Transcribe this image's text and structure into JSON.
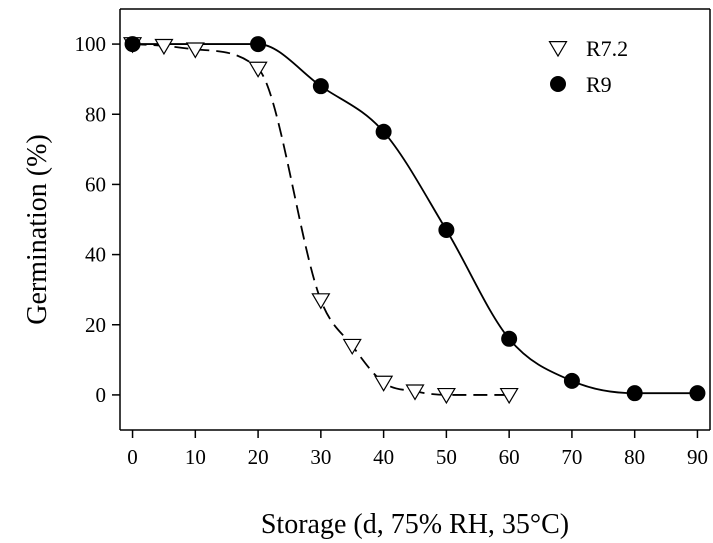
{
  "chart_data": {
    "type": "scatter",
    "xlabel": "Storage (d, 75% RH, 35°C)",
    "ylabel": "Germination (%)",
    "xlim": [
      -2,
      92
    ],
    "ylim": [
      -10,
      110
    ],
    "xticks": [
      0,
      10,
      20,
      30,
      40,
      50,
      60,
      70,
      80,
      90
    ],
    "yticks": [
      0,
      20,
      40,
      60,
      80,
      100
    ],
    "grid": false,
    "legend_position": "top-right",
    "series": [
      {
        "name": "R7.2",
        "marker": "triangle-down-open",
        "fit_line": "dashed",
        "fit_x_max": 60,
        "color": "#000000",
        "points": [
          {
            "x": 0,
            "y": 100
          },
          {
            "x": 5,
            "y": 99.5
          },
          {
            "x": 10,
            "y": 98.5
          },
          {
            "x": 20,
            "y": 93
          },
          {
            "x": 30,
            "y": 27
          },
          {
            "x": 35,
            "y": 14
          },
          {
            "x": 40,
            "y": 3.5
          },
          {
            "x": 45,
            "y": 1
          },
          {
            "x": 50,
            "y": 0
          },
          {
            "x": 60,
            "y": 0
          }
        ]
      },
      {
        "name": "R9",
        "marker": "circle-filled",
        "fit_line": "solid",
        "fit_x_max": 90,
        "color": "#000000",
        "points": [
          {
            "x": 0,
            "y": 100
          },
          {
            "x": 20,
            "y": 100
          },
          {
            "x": 30,
            "y": 88
          },
          {
            "x": 40,
            "y": 75
          },
          {
            "x": 50,
            "y": 47
          },
          {
            "x": 60,
            "y": 16
          },
          {
            "x": 70,
            "y": 4
          },
          {
            "x": 80,
            "y": 0.5
          },
          {
            "x": 90,
            "y": 0.5
          }
        ]
      }
    ]
  }
}
